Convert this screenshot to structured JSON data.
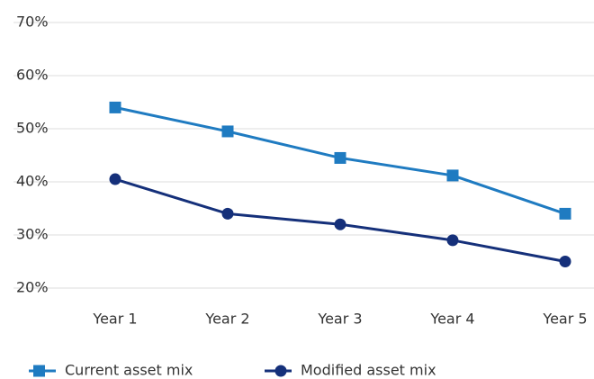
{
  "chart_data": {
    "type": "line",
    "categories": [
      "Year 1",
      "Year 2",
      "Year 3",
      "Year 4",
      "Year 5"
    ],
    "series": [
      {
        "name": "Current asset mix",
        "color": "#1f7bc1",
        "marker": "square",
        "values": [
          54,
          49.5,
          44.5,
          41.2,
          34
        ]
      },
      {
        "name": "Modified asset mix",
        "color": "#15307a",
        "marker": "circle",
        "values": [
          40.5,
          34,
          32,
          29,
          25
        ]
      }
    ],
    "ylim": [
      20,
      70
    ],
    "yticks": [
      {
        "value": 20,
        "label": "20%"
      },
      {
        "value": 30,
        "label": "30%"
      },
      {
        "value": 40,
        "label": "40%"
      },
      {
        "value": 50,
        "label": "50%"
      },
      {
        "value": 60,
        "label": "60%"
      },
      {
        "value": 70,
        "label": "70%"
      }
    ],
    "grid": true,
    "legend": "bottom"
  }
}
